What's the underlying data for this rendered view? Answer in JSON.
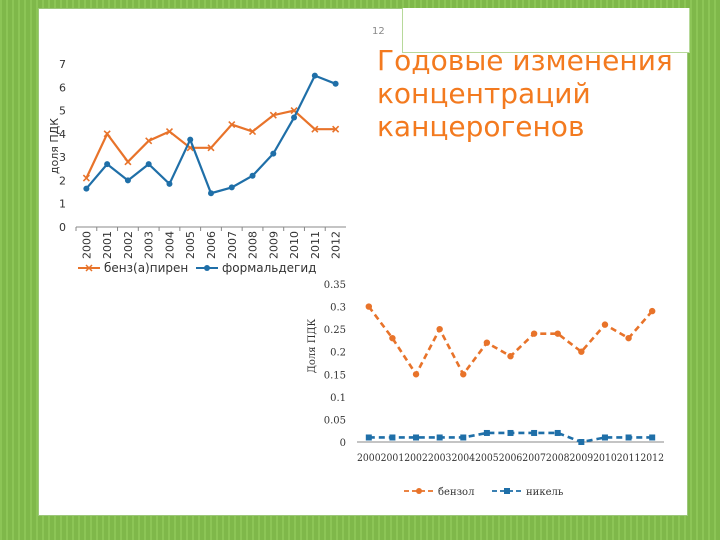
{
  "slide": {
    "page_number": "12",
    "title": "Годовые изменения концентраций канцерогенов"
  },
  "chart_data": [
    {
      "type": "line",
      "title": "",
      "xlabel": "",
      "ylabel": "доля ПДК",
      "ylim": [
        0,
        7
      ],
      "yticks": [
        "0",
        "1",
        "2",
        "3",
        "4",
        "5",
        "6",
        "7"
      ],
      "categories": [
        "2000",
        "2001",
        "2002",
        "2003",
        "2004",
        "2005",
        "2006",
        "2007",
        "2008",
        "2009",
        "2010",
        "2011",
        "2012"
      ],
      "series": [
        {
          "name": "бенз(а)пирен",
          "color": "#e8732a",
          "marker": "x",
          "values": [
            2.1,
            4.0,
            2.8,
            3.7,
            4.1,
            3.4,
            3.4,
            4.4,
            4.1,
            4.8,
            5.0,
            4.2,
            4.2
          ]
        },
        {
          "name": "формальдегид",
          "color": "#1f6fa8",
          "marker": "dot",
          "values": [
            1.65,
            2.7,
            2.0,
            2.7,
            1.85,
            3.75,
            1.45,
            1.7,
            2.2,
            3.15,
            4.7,
            6.5,
            6.15
          ]
        }
      ],
      "grid": false,
      "legend": "bottom"
    },
    {
      "type": "line",
      "title": "",
      "xlabel": "",
      "ylabel": "Доля ПДК",
      "ylim": [
        0,
        0.35
      ],
      "yticks": [
        "0",
        "0.05",
        "0.1",
        "0.15",
        "0.2",
        "0.25",
        "0.3",
        "0.35"
      ],
      "categories": [
        "2000",
        "2001",
        "2002",
        "2003",
        "2004",
        "2005",
        "2006",
        "2007",
        "2008",
        "2009",
        "2010",
        "2011",
        "2012"
      ],
      "series": [
        {
          "name": "бензол",
          "color": "#e8732a",
          "marker": "dot",
          "dashed": true,
          "values": [
            0.3,
            0.23,
            0.15,
            0.25,
            0.15,
            0.22,
            0.19,
            0.24,
            0.24,
            0.2,
            0.26,
            0.23,
            0.29
          ]
        },
        {
          "name": "никель",
          "color": "#1f6fa8",
          "marker": "square",
          "dashed": true,
          "values": [
            0.01,
            0.01,
            0.01,
            0.01,
            0.01,
            0.02,
            0.02,
            0.02,
            0.02,
            0.0,
            0.01,
            0.01,
            0.01
          ]
        }
      ],
      "grid": false,
      "legend": "bottom"
    }
  ]
}
